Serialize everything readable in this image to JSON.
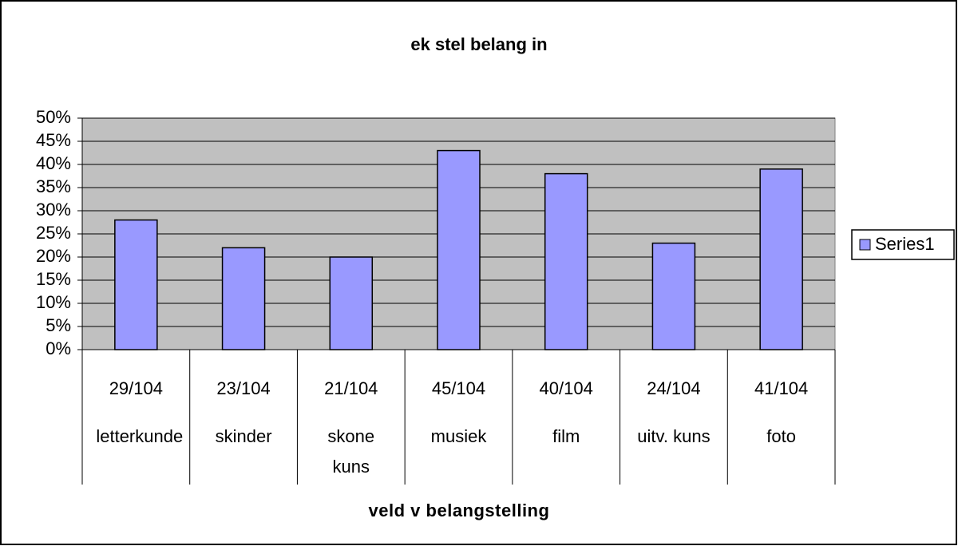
{
  "chart_data": {
    "type": "bar",
    "title": "ek stel belang in",
    "x_label": "veld v belangstelling",
    "categories": [
      "29/104",
      "23/104",
      "21/104",
      "45/104",
      "40/104",
      "24/104",
      "41/104"
    ],
    "subcategories": [
      "letterkunde",
      "skinder",
      "skone kuns",
      "musiek",
      "film",
      "uitv. kuns",
      "foto"
    ],
    "series": [
      {
        "name": "Series1",
        "color": "#9999ff",
        "values": [
          28,
          22,
          20,
          43,
          38,
          23,
          39
        ]
      }
    ],
    "ylim": [
      0,
      50
    ],
    "yticks": [
      {
        "value": 0,
        "label": "0%"
      },
      {
        "value": 5,
        "label": "5%"
      },
      {
        "value": 10,
        "label": "10%"
      },
      {
        "value": 15,
        "label": "15%"
      },
      {
        "value": 20,
        "label": "20%"
      },
      {
        "value": 25,
        "label": "25%"
      },
      {
        "value": 30,
        "label": "30%"
      },
      {
        "value": 35,
        "label": "35%"
      },
      {
        "value": 40,
        "label": "40%"
      },
      {
        "value": 45,
        "label": "45%"
      },
      {
        "value": 50,
        "label": "50%"
      }
    ],
    "grid": true,
    "legend": "right"
  }
}
